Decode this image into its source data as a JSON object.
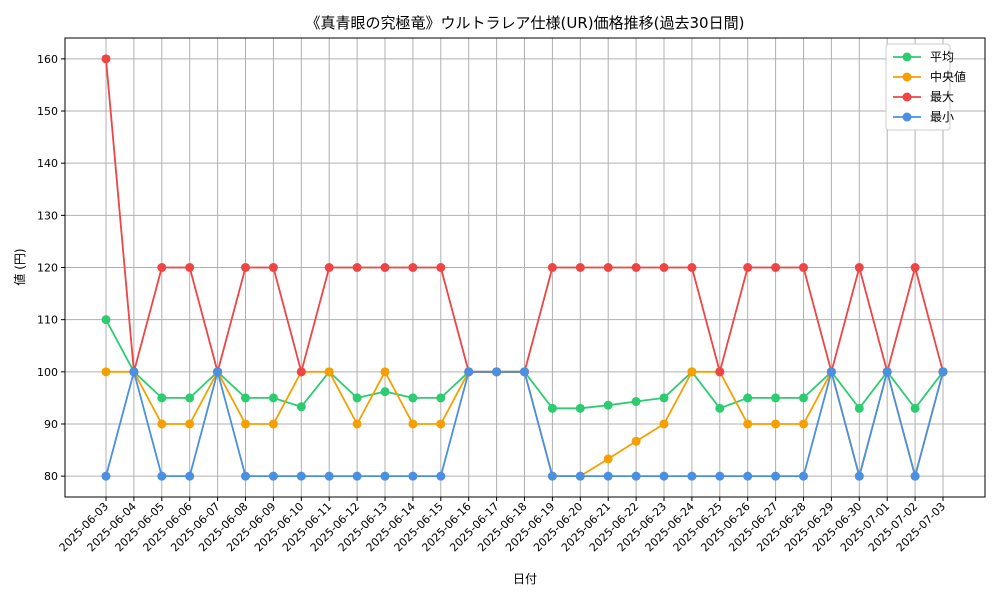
{
  "chart_data": {
    "type": "line",
    "title": "《真青眼の究極竜》ウルトラレア仕様(UR)価格推移(過去30日間)",
    "xlabel": "日付",
    "ylabel": "値 (円)",
    "ylim": [
      76,
      164
    ],
    "yticks": [
      80,
      90,
      100,
      110,
      120,
      130,
      140,
      150,
      160
    ],
    "grid": true,
    "legend_position": "top-right",
    "categories": [
      "2025-06-03",
      "2025-06-04",
      "2025-06-05",
      "2025-06-06",
      "2025-06-07",
      "2025-06-08",
      "2025-06-09",
      "2025-06-10",
      "2025-06-11",
      "2025-06-12",
      "2025-06-13",
      "2025-06-14",
      "2025-06-15",
      "2025-06-16",
      "2025-06-17",
      "2025-06-18",
      "2025-06-19",
      "2025-06-20",
      "2025-06-21",
      "2025-06-22",
      "2025-06-23",
      "2025-06-24",
      "2025-06-25",
      "2025-06-26",
      "2025-06-27",
      "2025-06-28",
      "2025-06-29",
      "2025-06-30",
      "2025-07-01",
      "2025-07-02",
      "2025-07-03"
    ],
    "series": [
      {
        "name": "平均",
        "color": "#2ecc71",
        "values": [
          110,
          100,
          95,
          95,
          100,
          95,
          95,
          93.3,
          100,
          95,
          96.2,
          95,
          95,
          100,
          100,
          100,
          93,
          93,
          93.6,
          94.3,
          95,
          100,
          93,
          95,
          95,
          95,
          100,
          93,
          100,
          93,
          100
        ]
      },
      {
        "name": "中央値",
        "color": "#f5a000",
        "values": [
          100,
          100,
          90,
          90,
          100,
          90,
          90,
          100,
          100,
          90,
          100,
          90,
          90,
          100,
          100,
          100,
          80,
          80,
          83.3,
          86.7,
          90,
          100,
          100,
          90,
          90,
          90,
          100,
          80,
          100,
          80,
          100
        ]
      },
      {
        "name": "最大",
        "color": "#ef4444",
        "values": [
          160,
          100,
          120,
          120,
          100,
          120,
          120,
          100,
          120,
          120,
          120,
          120,
          120,
          100,
          100,
          100,
          120,
          120,
          120,
          120,
          120,
          120,
          100,
          120,
          120,
          120,
          100,
          120,
          100,
          120,
          100
        ]
      },
      {
        "name": "最小",
        "color": "#4a90e2",
        "values": [
          80,
          100,
          80,
          80,
          100,
          80,
          80,
          80,
          80,
          80,
          80,
          80,
          80,
          100,
          100,
          100,
          80,
          80,
          80,
          80,
          80,
          80,
          80,
          80,
          80,
          80,
          100,
          80,
          100,
          80,
          100
        ]
      }
    ]
  }
}
